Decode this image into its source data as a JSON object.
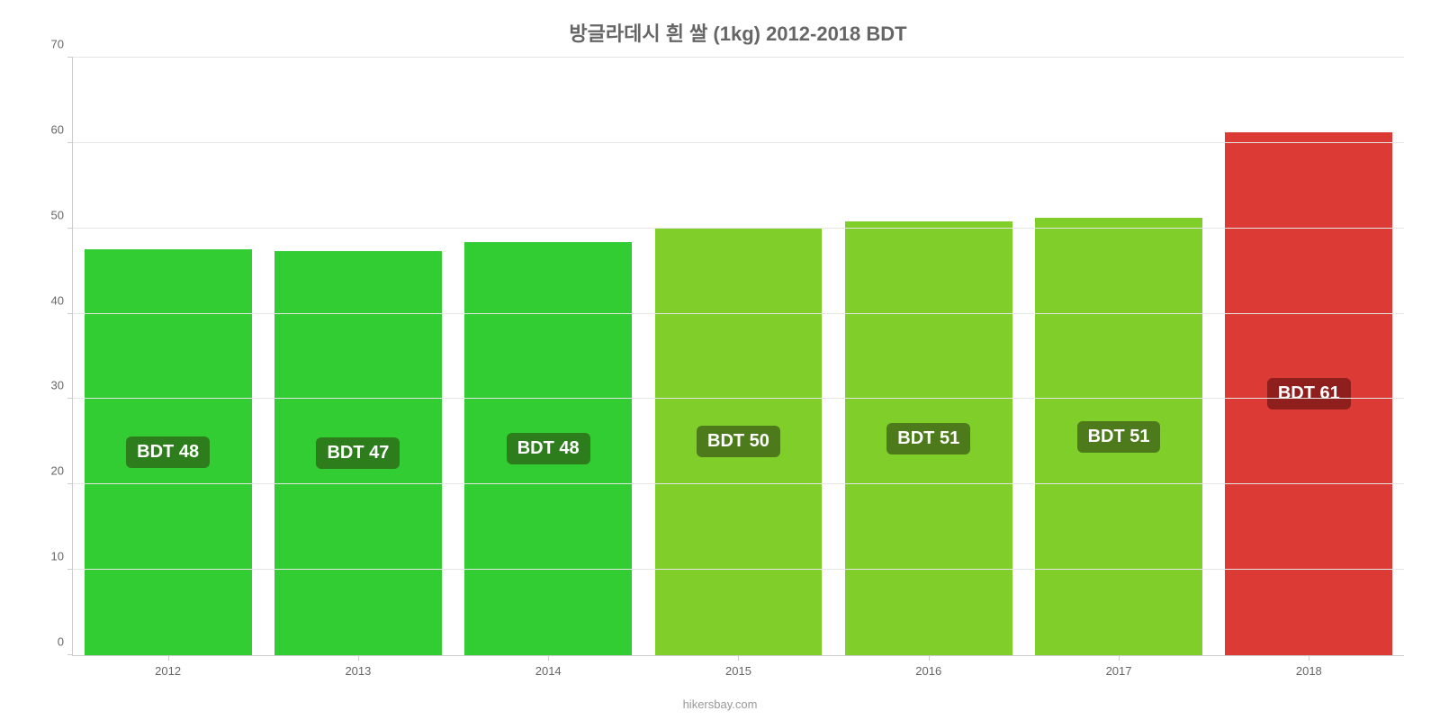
{
  "chart": {
    "type": "bar",
    "title": "방글라데시 흰 쌀 (1kg) 2012-2018 BDT",
    "title_fontsize": 22,
    "title_color": "#666666",
    "categories": [
      "2012",
      "2013",
      "2014",
      "2015",
      "2016",
      "2017",
      "2018"
    ],
    "values": [
      47.5,
      47.3,
      48.4,
      50.0,
      50.8,
      51.2,
      61.2
    ],
    "value_labels": [
      "BDT 48",
      "BDT 47",
      "BDT 48",
      "BDT 50",
      "BDT 51",
      "BDT 51",
      "BDT 61"
    ],
    "bar_colors": [
      "#32cd32",
      "#32cd32",
      "#32cd32",
      "#7fce29",
      "#7fce29",
      "#7fce29",
      "#dc3a35"
    ],
    "badge_bg_colors": [
      "#2e7d1d",
      "#2e7d1d",
      "#2e7d1d",
      "#4d7a1a",
      "#4d7a1a",
      "#4d7a1a",
      "#8f1f1c"
    ],
    "badge_text_color": "#ffffff",
    "badge_fontsize": 20,
    "ylim": [
      0,
      70
    ],
    "ytick_step": 10,
    "yticks": [
      "0",
      "10",
      "20",
      "30",
      "40",
      "50",
      "60",
      "70"
    ],
    "tick_fontsize": 13,
    "tick_color": "#666666",
    "grid_color": "#e6e6e6",
    "axis_color": "#cccccc",
    "background_color": "#ffffff",
    "bar_width_pct": 88,
    "attribution": "hikersbay.com",
    "attribution_color": "#999999",
    "attribution_fontsize": 13
  }
}
